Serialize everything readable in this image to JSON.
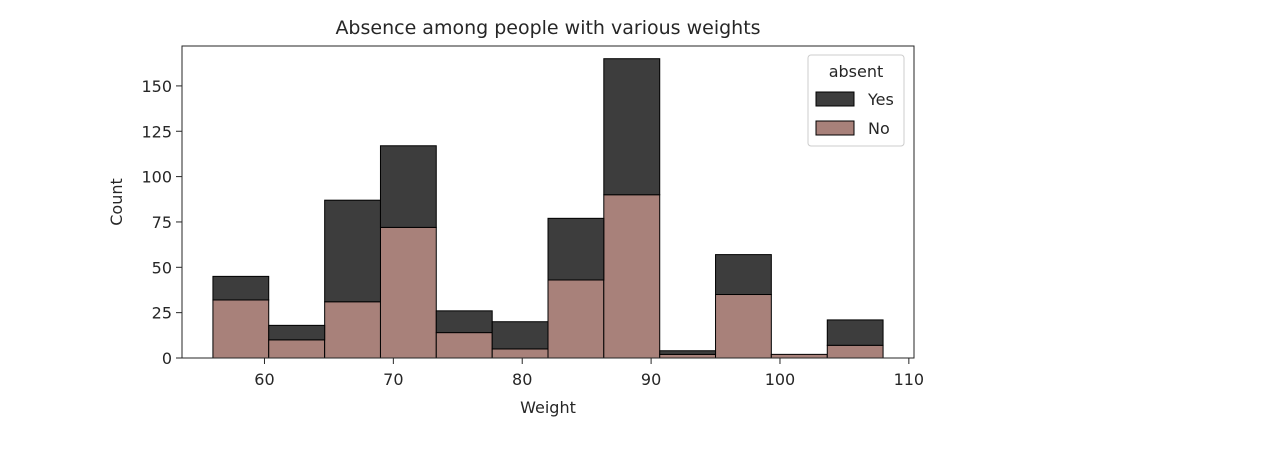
{
  "chart_data": {
    "type": "bar",
    "stacked": true,
    "title": "Absence among people with various weights",
    "xlabel": "Weight",
    "ylabel": "Count",
    "xlim": [
      53.6,
      110.4
    ],
    "ylim": [
      0,
      172
    ],
    "xticks": [
      60,
      70,
      80,
      90,
      100,
      110
    ],
    "yticks": [
      0,
      25,
      50,
      75,
      100,
      125,
      150
    ],
    "bin_edges": [
      56,
      60.33,
      64.67,
      69,
      73.33,
      77.67,
      82,
      86.33,
      90.67,
      95,
      99.33,
      103.67,
      108
    ],
    "series": [
      {
        "name": "No",
        "color": "#a8817a",
        "values": [
          32,
          10,
          31,
          72,
          14,
          5,
          43,
          90,
          2,
          35,
          2,
          7
        ]
      },
      {
        "name": "Yes",
        "color": "#3d3d3d",
        "values": [
          13,
          8,
          56,
          45,
          12,
          15,
          34,
          75,
          2,
          22,
          0,
          14
        ]
      }
    ],
    "legend": {
      "title": "absent",
      "position": "top-right",
      "entries": [
        {
          "label": "Yes",
          "color": "#3d3d3d"
        },
        {
          "label": "No",
          "color": "#a8817a"
        }
      ]
    },
    "grid": false
  }
}
